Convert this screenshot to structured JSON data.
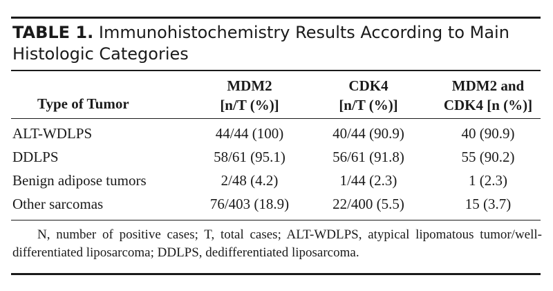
{
  "table": {
    "caption_label": "TABLE 1.",
    "caption_text": "Immunohistochemistry Results According to Main Histologic Categories",
    "headers": [
      {
        "line1": "Type of Tumor",
        "line2": ""
      },
      {
        "line1": "MDM2",
        "line2": "[n/T (%)]"
      },
      {
        "line1": "CDK4",
        "line2": "[n/T (%)]"
      },
      {
        "line1": "MDM2 and",
        "line2": "CDK4 [n (%)]"
      }
    ],
    "rows": [
      [
        "ALT-WDLPS",
        "44/44 (100)",
        "40/44 (90.9)",
        "40 (90.9)"
      ],
      [
        "DDLPS",
        "58/61 (95.1)",
        "56/61 (91.8)",
        "55 (90.2)"
      ],
      [
        "Benign adipose tumors",
        "2/48 (4.2)",
        "1/44 (2.3)",
        "1 (2.3)"
      ],
      [
        "Other sarcomas",
        "76/403 (18.9)",
        "22/400 (5.5)",
        "15 (3.7)"
      ]
    ],
    "footnote": "N, number of positive cases; T, total cases; ALT-WDLPS, atypical lipomatous tumor/well-differentiated liposarcoma; DDLPS, dedifferentiated liposarcoma."
  }
}
